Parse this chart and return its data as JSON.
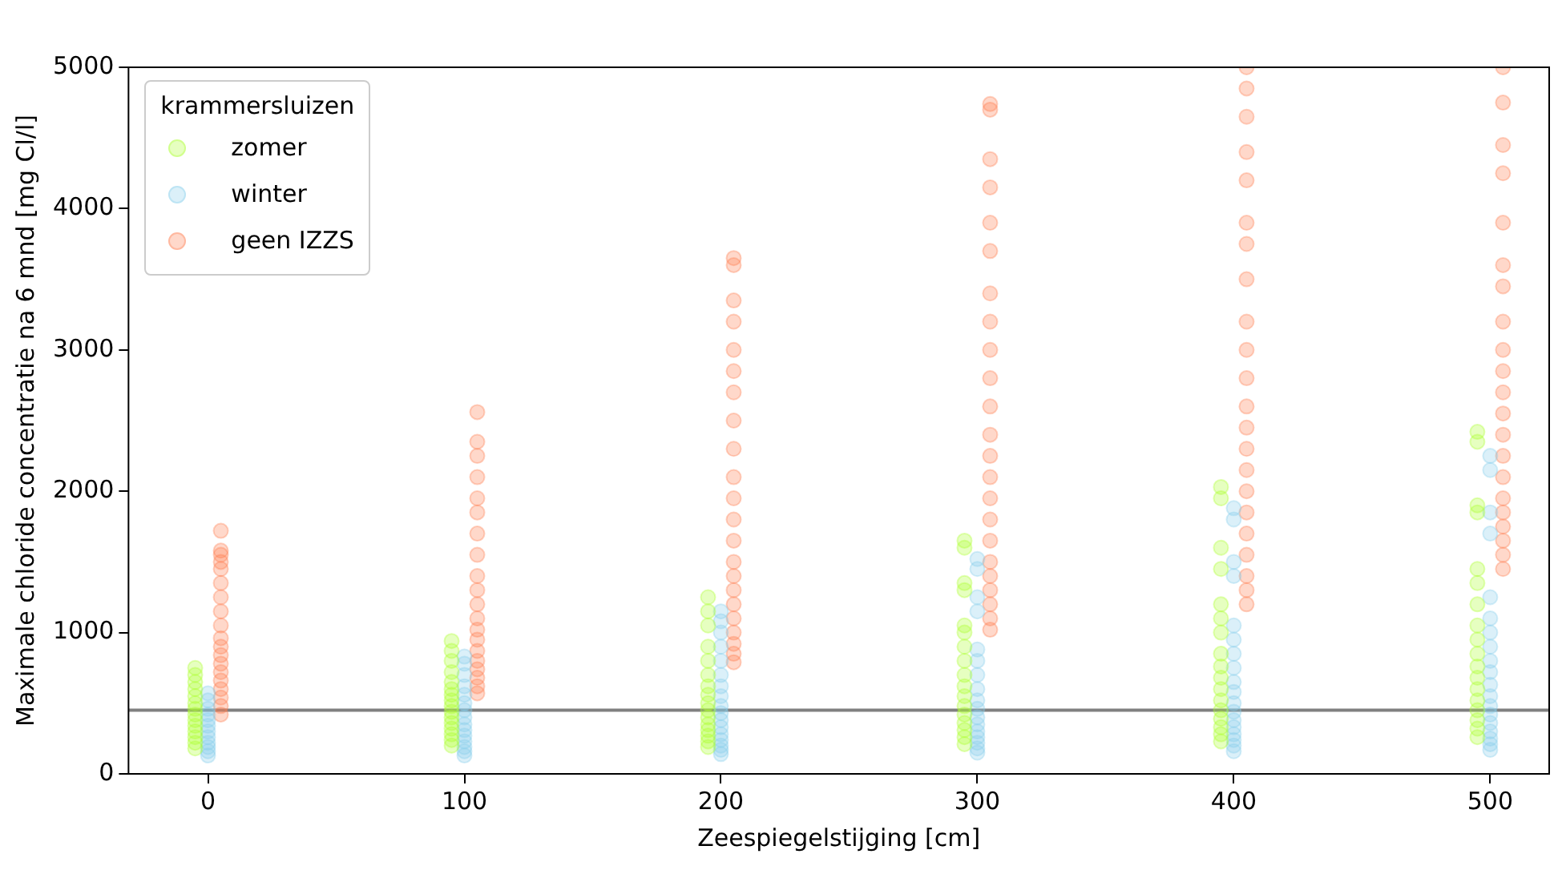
{
  "chart_data": {
    "type": "scatter",
    "xlabel": "Zeespiegelstijging [cm]",
    "ylabel": "Maximale chloride concentratie na 6 mnd [mg Cl/l]",
    "legend_title": "krammersluizen",
    "legend": "top left",
    "grid": false,
    "marker": "circle",
    "xlim": [
      -31,
      523
    ],
    "xticks": [
      0,
      100,
      200,
      300,
      400,
      500
    ],
    "ylim": [
      0,
      5000
    ],
    "yticks": [
      0,
      1000,
      2000,
      3000,
      4000,
      5000
    ],
    "ref_lines": [
      {
        "axis": "y",
        "value": 450,
        "color": "#808080"
      }
    ],
    "series": [
      {
        "name": "zomer",
        "color": "#adff2f",
        "x": [
          -5,
          -5,
          -5,
          -5,
          -5,
          -5,
          -5,
          -5,
          -5,
          -5,
          -5,
          -5,
          -5,
          -5,
          95,
          95,
          95,
          95,
          95,
          95,
          95,
          95,
          95,
          95,
          95,
          95,
          95,
          95,
          95,
          95,
          195,
          195,
          195,
          195,
          195,
          195,
          195,
          195,
          195,
          195,
          195,
          195,
          195,
          195,
          195,
          195,
          295,
          295,
          295,
          295,
          295,
          295,
          295,
          295,
          295,
          295,
          295,
          295,
          295,
          295,
          295,
          295,
          295,
          395,
          395,
          395,
          395,
          395,
          395,
          395,
          395,
          395,
          395,
          395,
          395,
          395,
          395,
          395,
          395,
          395,
          495,
          495,
          495,
          495,
          495,
          495,
          495,
          495,
          495,
          495,
          495,
          495,
          495,
          495,
          495,
          495,
          495,
          495
        ],
        "values": [
          180,
          220,
          260,
          300,
          340,
          380,
          420,
          460,
          500,
          550,
          600,
          650,
          700,
          750,
          200,
          240,
          280,
          320,
          360,
          400,
          440,
          480,
          520,
          560,
          600,
          650,
          720,
          800,
          870,
          940,
          190,
          230,
          270,
          310,
          350,
          400,
          450,
          500,
          560,
          620,
          700,
          800,
          900,
          1050,
          1150,
          1250,
          210,
          260,
          310,
          360,
          420,
          480,
          550,
          620,
          700,
          800,
          900,
          1000,
          1050,
          1300,
          1350,
          1600,
          1650,
          230,
          280,
          330,
          390,
          450,
          520,
          600,
          680,
          760,
          850,
          1000,
          1100,
          1200,
          1450,
          1600,
          1950,
          2030,
          260,
          320,
          380,
          450,
          520,
          600,
          680,
          760,
          850,
          950,
          1050,
          1200,
          1350,
          1450,
          1850,
          1900,
          2350,
          2420
        ]
      },
      {
        "name": "winter",
        "color": "#87ceeb",
        "x": [
          0,
          0,
          0,
          0,
          0,
          0,
          0,
          0,
          0,
          0,
          0,
          0,
          100,
          100,
          100,
          100,
          100,
          100,
          100,
          100,
          100,
          100,
          100,
          100,
          100,
          100,
          100,
          200,
          200,
          200,
          200,
          200,
          200,
          200,
          200,
          200,
          200,
          200,
          200,
          200,
          200,
          200,
          200,
          200,
          300,
          300,
          300,
          300,
          300,
          300,
          300,
          300,
          300,
          300,
          300,
          300,
          300,
          300,
          300,
          300,
          300,
          400,
          400,
          400,
          400,
          400,
          400,
          400,
          400,
          400,
          400,
          400,
          400,
          400,
          400,
          400,
          400,
          400,
          400,
          500,
          500,
          500,
          500,
          500,
          500,
          500,
          500,
          500,
          500,
          500,
          500,
          500,
          500,
          500,
          500,
          500,
          500,
          500
        ],
        "values": [
          130,
          160,
          190,
          220,
          260,
          300,
          340,
          380,
          420,
          460,
          520,
          570,
          130,
          160,
          190,
          230,
          270,
          310,
          350,
          400,
          450,
          500,
          560,
          620,
          700,
          780,
          830,
          140,
          170,
          200,
          240,
          280,
          330,
          380,
          430,
          480,
          550,
          620,
          700,
          800,
          900,
          1000,
          1080,
          1150,
          150,
          180,
          220,
          260,
          300,
          350,
          400,
          460,
          520,
          600,
          700,
          800,
          880,
          1150,
          1250,
          1450,
          1520,
          160,
          200,
          240,
          280,
          330,
          380,
          440,
          500,
          580,
          650,
          750,
          850,
          950,
          1050,
          1400,
          1500,
          1800,
          1880,
          170,
          210,
          250,
          300,
          360,
          420,
          480,
          550,
          630,
          720,
          800,
          900,
          1000,
          1100,
          1250,
          1700,
          1850,
          2150,
          2250
        ]
      },
      {
        "name": "geen IZZS",
        "color": "#ff7f50",
        "x": [
          5,
          5,
          5,
          5,
          5,
          5,
          5,
          5,
          5,
          5,
          5,
          5,
          5,
          5,
          5,
          5,
          5,
          5,
          5,
          105,
          105,
          105,
          105,
          105,
          105,
          105,
          105,
          105,
          105,
          105,
          105,
          105,
          105,
          105,
          105,
          105,
          105,
          105,
          105,
          205,
          205,
          205,
          205,
          205,
          205,
          205,
          205,
          205,
          205,
          205,
          205,
          205,
          205,
          205,
          205,
          205,
          205,
          205,
          205,
          205,
          205,
          305,
          305,
          305,
          305,
          305,
          305,
          305,
          305,
          305,
          305,
          305,
          305,
          305,
          305,
          305,
          305,
          305,
          305,
          305,
          305,
          305,
          305,
          305,
          405,
          405,
          405,
          405,
          405,
          405,
          405,
          405,
          405,
          405,
          405,
          405,
          405,
          405,
          405,
          405,
          405,
          405,
          405,
          405,
          405,
          405,
          505,
          505,
          505,
          505,
          505,
          505,
          505,
          505,
          505,
          505,
          505,
          505,
          505,
          505,
          505,
          505,
          505,
          505,
          505,
          505,
          505
        ],
        "values": [
          420,
          480,
          540,
          600,
          660,
          720,
          780,
          840,
          900,
          960,
          1050,
          1150,
          1250,
          1350,
          1450,
          1500,
          1550,
          1580,
          1720,
          570,
          620,
          680,
          740,
          800,
          870,
          950,
          1020,
          1100,
          1200,
          1300,
          1400,
          1550,
          1700,
          1850,
          1950,
          2100,
          2250,
          2350,
          2560,
          790,
          850,
          920,
          1000,
          1100,
          1200,
          1300,
          1400,
          1500,
          1650,
          1800,
          1950,
          2100,
          2300,
          2500,
          2700,
          2850,
          3000,
          3200,
          3350,
          3600,
          3650,
          1020,
          1100,
          1200,
          1300,
          1400,
          1500,
          1650,
          1800,
          1950,
          2100,
          2250,
          2400,
          2600,
          2800,
          3000,
          3200,
          3400,
          3700,
          3900,
          4150,
          4350,
          4700,
          4740,
          1200,
          1300,
          1400,
          1550,
          1700,
          1850,
          2000,
          2150,
          2300,
          2450,
          2600,
          2800,
          3000,
          3200,
          3500,
          3750,
          3900,
          4200,
          4400,
          4650,
          4850,
          5000,
          1450,
          1550,
          1650,
          1750,
          1850,
          1950,
          2100,
          2250,
          2400,
          2550,
          2700,
          2850,
          3000,
          3200,
          3450,
          3600,
          3900,
          4250,
          4450,
          4750,
          5000
        ]
      }
    ]
  }
}
